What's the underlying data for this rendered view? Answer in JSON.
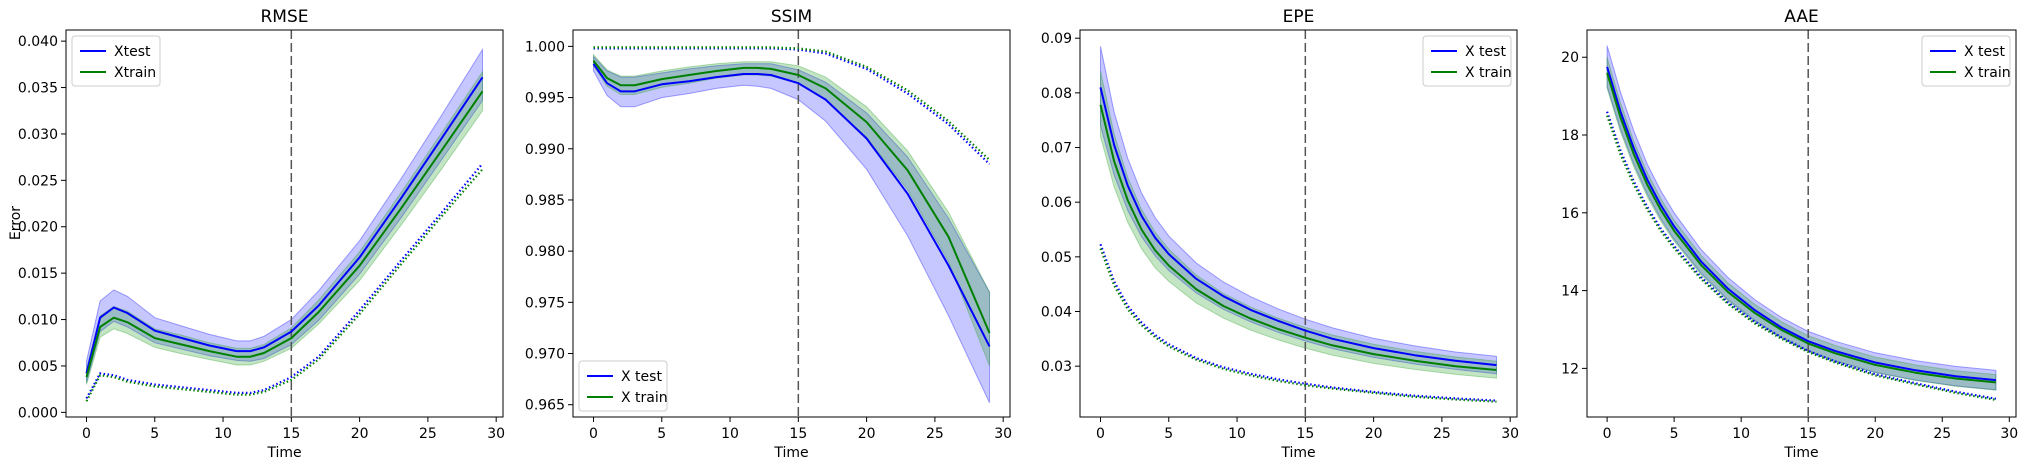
{
  "colors": {
    "test": "#0000ff",
    "train": "#008000",
    "test_band": "#0000ff",
    "train_band": "#2ca02c",
    "vline": "#555555"
  },
  "chart_data": [
    {
      "type": "line",
      "title": "RMSE",
      "xlabel": "Time",
      "ylabel": "Error",
      "xlim": [
        -1.5,
        30.5
      ],
      "ylim": [
        -0.0005,
        0.0412
      ],
      "xticks": [
        0,
        5,
        10,
        15,
        20,
        25,
        30
      ],
      "xtick_labels": [
        "0",
        "5",
        "10",
        "15",
        "20",
        "25",
        "30"
      ],
      "yticks": [
        0.0,
        0.005,
        0.01,
        0.015,
        0.02,
        0.025,
        0.03,
        0.035,
        0.04
      ],
      "ytick_labels": [
        "0.000",
        "0.005",
        "0.010",
        "0.015",
        "0.020",
        "0.025",
        "0.030",
        "0.035",
        "0.040"
      ],
      "vline_x": 15,
      "legend_loc": "top-left",
      "legend": [
        "Xtest",
        "Xtrain"
      ],
      "x": [
        0,
        1,
        2,
        3,
        5,
        7,
        9,
        11,
        12,
        13,
        15,
        17,
        20,
        23,
        26,
        29
      ],
      "series": [
        {
          "role": "test",
          "mean": [
            0.0042,
            0.0102,
            0.0113,
            0.0107,
            0.0088,
            0.008,
            0.0072,
            0.0066,
            0.0066,
            0.007,
            0.0087,
            0.0115,
            0.0167,
            0.023,
            0.0295,
            0.0361
          ],
          "lower": [
            0.0032,
            0.0087,
            0.0098,
            0.0092,
            0.0075,
            0.0068,
            0.0061,
            0.0056,
            0.0055,
            0.0058,
            0.0073,
            0.0099,
            0.0149,
            0.0209,
            0.0272,
            0.0336
          ],
          "upper": [
            0.0055,
            0.012,
            0.0132,
            0.0125,
            0.0102,
            0.0093,
            0.0084,
            0.0077,
            0.0077,
            0.0082,
            0.01,
            0.0131,
            0.0185,
            0.0251,
            0.032,
            0.0391
          ]
        },
        {
          "role": "train",
          "mean": [
            0.0038,
            0.0092,
            0.0102,
            0.0097,
            0.008,
            0.0073,
            0.0066,
            0.006,
            0.006,
            0.0064,
            0.008,
            0.0108,
            0.0158,
            0.0219,
            0.0282,
            0.0346
          ],
          "lower": [
            0.003,
            0.0081,
            0.009,
            0.0085,
            0.007,
            0.0063,
            0.0057,
            0.0051,
            0.0051,
            0.0055,
            0.0069,
            0.0095,
            0.0142,
            0.0201,
            0.0262,
            0.0325
          ],
          "upper": [
            0.0047,
            0.0104,
            0.0114,
            0.0109,
            0.009,
            0.0083,
            0.0075,
            0.0069,
            0.0069,
            0.0073,
            0.0091,
            0.0121,
            0.0173,
            0.0236,
            0.0301,
            0.0367
          ]
        },
        {
          "role": "test",
          "dotted": true,
          "values": [
            0.0015,
            0.0042,
            0.004,
            0.0035,
            0.003,
            0.0027,
            0.0024,
            0.0021,
            0.0021,
            0.0024,
            0.0038,
            0.006,
            0.011,
            0.0163,
            0.0215,
            0.0268
          ]
        },
        {
          "role": "train",
          "dotted": true,
          "values": [
            0.0012,
            0.004,
            0.0038,
            0.0033,
            0.0028,
            0.0025,
            0.0022,
            0.0019,
            0.0019,
            0.0022,
            0.0035,
            0.0057,
            0.0106,
            0.0159,
            0.0211,
            0.0262
          ]
        }
      ]
    },
    {
      "type": "line",
      "title": "SSIM",
      "xlabel": "Time",
      "ylabel": "",
      "xlim": [
        -1.5,
        30.5
      ],
      "ylim": [
        0.9638,
        1.0016
      ],
      "xticks": [
        0,
        5,
        10,
        15,
        20,
        25,
        30
      ],
      "xtick_labels": [
        "0",
        "5",
        "10",
        "15",
        "20",
        "25",
        "30"
      ],
      "yticks": [
        0.965,
        0.97,
        0.975,
        0.98,
        0.985,
        0.99,
        0.995,
        1.0
      ],
      "ytick_labels": [
        "0.965",
        "0.970",
        "0.975",
        "0.980",
        "0.985",
        "0.990",
        "0.995",
        "1.000"
      ],
      "vline_x": 15,
      "legend_loc": "bottom-left",
      "legend": [
        "X test",
        "X train"
      ],
      "x": [
        0,
        1,
        2,
        3,
        5,
        7,
        9,
        11,
        12,
        13,
        15,
        17,
        20,
        23,
        26,
        29
      ],
      "series": [
        {
          "role": "test",
          "mean": [
            0.9983,
            0.9964,
            0.9956,
            0.9956,
            0.9963,
            0.9966,
            0.997,
            0.9973,
            0.9973,
            0.9972,
            0.9964,
            0.9948,
            0.991,
            0.9856,
            0.9786,
            0.9707
          ],
          "lower": [
            0.9976,
            0.9952,
            0.9941,
            0.9941,
            0.995,
            0.9954,
            0.9959,
            0.9962,
            0.9961,
            0.9959,
            0.9948,
            0.9927,
            0.988,
            0.9815,
            0.9737,
            0.9652
          ],
          "upper": [
            0.999,
            0.9976,
            0.997,
            0.997,
            0.9974,
            0.9978,
            0.9981,
            0.9983,
            0.9983,
            0.9983,
            0.9977,
            0.9965,
            0.9935,
            0.9892,
            0.9832,
            0.976
          ]
        },
        {
          "role": "train",
          "mean": [
            0.9986,
            0.9969,
            0.9962,
            0.9962,
            0.9968,
            0.9972,
            0.9976,
            0.9979,
            0.9979,
            0.9978,
            0.9972,
            0.9959,
            0.9926,
            0.9879,
            0.9814,
            0.972
          ],
          "lower": [
            0.9981,
            0.9961,
            0.9953,
            0.9953,
            0.996,
            0.9964,
            0.9969,
            0.9972,
            0.9972,
            0.9971,
            0.9964,
            0.9948,
            0.9911,
            0.986,
            0.979,
            0.9688
          ],
          "upper": [
            0.9992,
            0.9977,
            0.9971,
            0.9971,
            0.9976,
            0.998,
            0.9983,
            0.9985,
            0.9985,
            0.9985,
            0.9981,
            0.997,
            0.9941,
            0.9898,
            0.9838,
            0.976
          ]
        },
        {
          "role": "test",
          "dotted": true,
          "values": [
            0.9998,
            0.9998,
            0.9998,
            0.9998,
            0.9998,
            0.9998,
            0.9998,
            0.9998,
            0.9998,
            0.9998,
            0.9997,
            0.9993,
            0.9978,
            0.9954,
            0.9924,
            0.9885
          ]
        },
        {
          "role": "train",
          "dotted": true,
          "values": [
            0.9999,
            0.9999,
            0.9999,
            0.9999,
            0.9999,
            0.9999,
            0.9999,
            0.9999,
            0.9999,
            0.9999,
            0.9998,
            0.9995,
            0.998,
            0.9957,
            0.9927,
            0.9889
          ]
        }
      ]
    },
    {
      "type": "line",
      "title": "EPE",
      "xlabel": "Time",
      "ylabel": "",
      "xlim": [
        -1.5,
        30.5
      ],
      "ylim": [
        0.0207,
        0.0915
      ],
      "xticks": [
        0,
        5,
        10,
        15,
        20,
        25,
        30
      ],
      "xtick_labels": [
        "0",
        "5",
        "10",
        "15",
        "20",
        "25",
        "30"
      ],
      "yticks": [
        0.03,
        0.04,
        0.05,
        0.06,
        0.07,
        0.08,
        0.09
      ],
      "ytick_labels": [
        "0.03",
        "0.04",
        "0.05",
        "0.06",
        "0.07",
        "0.08",
        "0.09"
      ],
      "vline_x": 15,
      "legend_loc": "top-right",
      "legend": [
        "X test",
        "X train"
      ],
      "x": [
        0,
        1,
        2,
        3,
        4,
        5,
        7,
        9,
        11,
        13,
        15,
        17,
        20,
        23,
        26,
        29
      ],
      "series": [
        {
          "role": "test",
          "mean": [
            0.081,
            0.0705,
            0.063,
            0.0575,
            0.0535,
            0.0505,
            0.046,
            0.0428,
            0.0403,
            0.0383,
            0.0365,
            0.035,
            0.0333,
            0.032,
            0.031,
            0.0302
          ],
          "lower": [
            0.074,
            0.065,
            0.0585,
            0.0537,
            0.0502,
            0.0475,
            0.0434,
            0.0404,
            0.0381,
            0.0362,
            0.0346,
            0.0332,
            0.0316,
            0.0304,
            0.0294,
            0.0286
          ],
          "upper": [
            0.0885,
            0.0765,
            0.068,
            0.0617,
            0.0572,
            0.0538,
            0.0489,
            0.0454,
            0.0427,
            0.0405,
            0.0386,
            0.037,
            0.0351,
            0.0337,
            0.0326,
            0.0318
          ]
        },
        {
          "role": "train",
          "mean": [
            0.0778,
            0.0675,
            0.0603,
            0.055,
            0.0512,
            0.0484,
            0.0441,
            0.041,
            0.0387,
            0.0368,
            0.0352,
            0.0338,
            0.0322,
            0.031,
            0.03,
            0.0293
          ],
          "lower": [
            0.072,
            0.0628,
            0.0563,
            0.0515,
            0.048,
            0.0455,
            0.0416,
            0.0388,
            0.0366,
            0.0348,
            0.0333,
            0.032,
            0.0305,
            0.0294,
            0.0285,
            0.0278
          ],
          "upper": [
            0.084,
            0.0725,
            0.0645,
            0.0587,
            0.0545,
            0.0514,
            0.0467,
            0.0433,
            0.0408,
            0.0388,
            0.0371,
            0.0357,
            0.034,
            0.0327,
            0.0317,
            0.0309
          ]
        },
        {
          "role": "test",
          "dotted": true,
          "values": [
            0.0523,
            0.0455,
            0.041,
            0.038,
            0.0357,
            0.034,
            0.0315,
            0.0298,
            0.0286,
            0.0276,
            0.0268,
            0.0261,
            0.0253,
            0.0246,
            0.0241,
            0.0237
          ]
        },
        {
          "role": "train",
          "dotted": true,
          "values": [
            0.0515,
            0.0448,
            0.0404,
            0.0375,
            0.0353,
            0.0336,
            0.0312,
            0.0295,
            0.0283,
            0.0273,
            0.0265,
            0.0259,
            0.0251,
            0.0244,
            0.0239,
            0.0235
          ]
        }
      ]
    },
    {
      "type": "line",
      "title": "AAE",
      "xlabel": "Time",
      "ylabel": "",
      "xlim": [
        -1.5,
        30.5
      ],
      "ylim": [
        10.75,
        20.7
      ],
      "xticks": [
        0,
        5,
        10,
        15,
        20,
        25,
        30
      ],
      "xtick_labels": [
        "0",
        "5",
        "10",
        "15",
        "20",
        "25",
        "30"
      ],
      "yticks": [
        12,
        14,
        16,
        18,
        20
      ],
      "ytick_labels": [
        "12",
        "14",
        "16",
        "18",
        "20"
      ],
      "vline_x": 15,
      "legend_loc": "top-right",
      "legend": [
        "X test",
        "X train"
      ],
      "x": [
        0,
        1,
        2,
        3,
        4,
        5,
        7,
        9,
        11,
        13,
        15,
        17,
        20,
        23,
        26,
        29
      ],
      "series": [
        {
          "role": "test",
          "mean": [
            19.75,
            18.6,
            17.65,
            16.85,
            16.2,
            15.65,
            14.75,
            14.05,
            13.5,
            13.05,
            12.7,
            12.45,
            12.15,
            11.95,
            11.8,
            11.7
          ],
          "lower": [
            19.25,
            18.15,
            17.25,
            16.48,
            15.85,
            15.32,
            14.45,
            13.77,
            13.24,
            12.8,
            12.46,
            12.2,
            11.9,
            11.7,
            11.55,
            11.45
          ],
          "upper": [
            20.3,
            19.1,
            18.1,
            17.25,
            16.57,
            16.0,
            15.06,
            14.34,
            13.77,
            13.31,
            12.95,
            12.7,
            12.4,
            12.2,
            12.05,
            11.95
          ]
        },
        {
          "role": "train",
          "mean": [
            19.6,
            18.45,
            17.5,
            16.72,
            16.08,
            15.54,
            14.66,
            13.97,
            13.43,
            12.99,
            12.64,
            12.39,
            12.09,
            11.89,
            11.74,
            11.64
          ],
          "lower": [
            19.2,
            18.08,
            17.17,
            16.41,
            15.79,
            15.27,
            14.41,
            13.74,
            13.21,
            12.78,
            12.44,
            12.19,
            11.89,
            11.69,
            11.54,
            11.44
          ],
          "upper": [
            20.0,
            18.82,
            17.83,
            17.03,
            16.37,
            15.81,
            14.91,
            14.2,
            13.65,
            13.2,
            12.84,
            12.59,
            12.29,
            12.09,
            11.94,
            11.84
          ]
        },
        {
          "role": "test",
          "dotted": true,
          "values": [
            18.6,
            17.6,
            16.8,
            16.15,
            15.6,
            15.15,
            14.35,
            13.7,
            13.2,
            12.8,
            12.45,
            12.18,
            11.85,
            11.62,
            11.4,
            11.22
          ]
        },
        {
          "role": "train",
          "dotted": true,
          "values": [
            18.5,
            17.5,
            16.72,
            16.08,
            15.54,
            15.09,
            14.3,
            13.66,
            13.16,
            12.76,
            12.42,
            12.15,
            11.82,
            11.59,
            11.37,
            11.19
          ]
        }
      ]
    }
  ]
}
